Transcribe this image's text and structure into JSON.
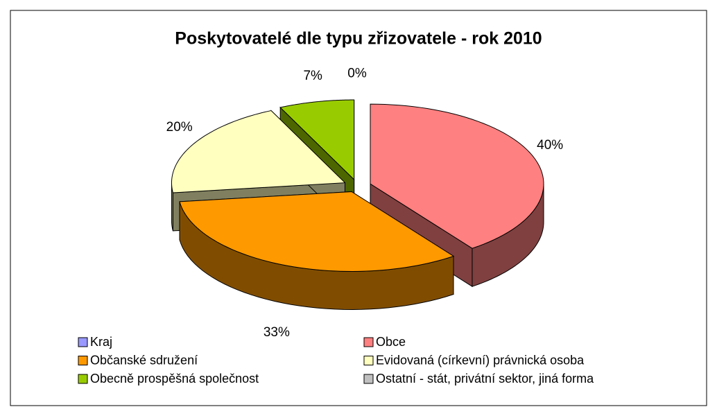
{
  "chart_data": {
    "type": "pie",
    "title": "Poskytovatelé dle typu zřizovatele - rok 2010",
    "categories": [
      "Kraj",
      "Obce",
      "Občanské sdružení",
      "Evidovaná (církevní) právnická osoba",
      "Obecně prospěšná společnost",
      "Ostatní - stát, privátní sektor, jiná forma"
    ],
    "values": [
      0,
      40,
      33,
      20,
      7,
      0
    ],
    "value_labels": [
      null,
      "40%",
      "33%",
      "20%",
      "7%",
      "0%"
    ],
    "colors": [
      "#9999ff",
      "#ff8080",
      "#ff9900",
      "#ffffc0",
      "#99cc00",
      "#c0c0c0"
    ]
  }
}
